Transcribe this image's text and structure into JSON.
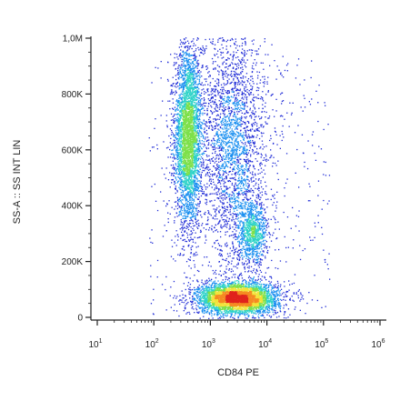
{
  "chart_data": {
    "type": "scatter",
    "title": "",
    "xlabel": "CD84 PE",
    "ylabel": "SS-A :: SS INT LIN",
    "x_scale": "log",
    "xlim": [
      10,
      1000000
    ],
    "y_scale": "linear",
    "ylim": [
      0,
      1000000
    ],
    "x_ticks": [
      {
        "base": "10",
        "exp": "1",
        "value": 10
      },
      {
        "base": "10",
        "exp": "2",
        "value": 100
      },
      {
        "base": "10",
        "exp": "3",
        "value": 1000
      },
      {
        "base": "10",
        "exp": "4",
        "value": 10000
      },
      {
        "base": "10",
        "exp": "5",
        "value": 100000
      },
      {
        "base": "10",
        "exp": "6",
        "value": 1000000
      }
    ],
    "y_ticks": [
      {
        "label": "0",
        "value": 0
      },
      {
        "label": "200K",
        "value": 200000
      },
      {
        "label": "400K",
        "value": 400000
      },
      {
        "label": "600K",
        "value": 600000
      },
      {
        "label": "800K",
        "value": 800000
      },
      {
        "label": "1,0M",
        "value": 1000000
      }
    ],
    "density_colormap": [
      "#1f2bd6",
      "#1a8ff0",
      "#2fd3c8",
      "#7de04a",
      "#f2e33a",
      "#f58a22",
      "#e0231d"
    ],
    "populations": [
      {
        "x_center": 400,
        "y_center": 650000,
        "x_spread_decades": 0.12,
        "y_spread": 160000,
        "count": 3600
      },
      {
        "x_center": 3000,
        "y_center": 70000,
        "x_spread_decades": 0.35,
        "y_spread": 28000,
        "count": 4200
      },
      {
        "x_center": 5500,
        "y_center": 300000,
        "x_spread_decades": 0.13,
        "y_spread": 55000,
        "count": 900
      },
      {
        "x_center": 2500,
        "y_center": 620000,
        "x_spread_decades": 0.3,
        "y_spread": 230000,
        "count": 2600
      }
    ]
  }
}
